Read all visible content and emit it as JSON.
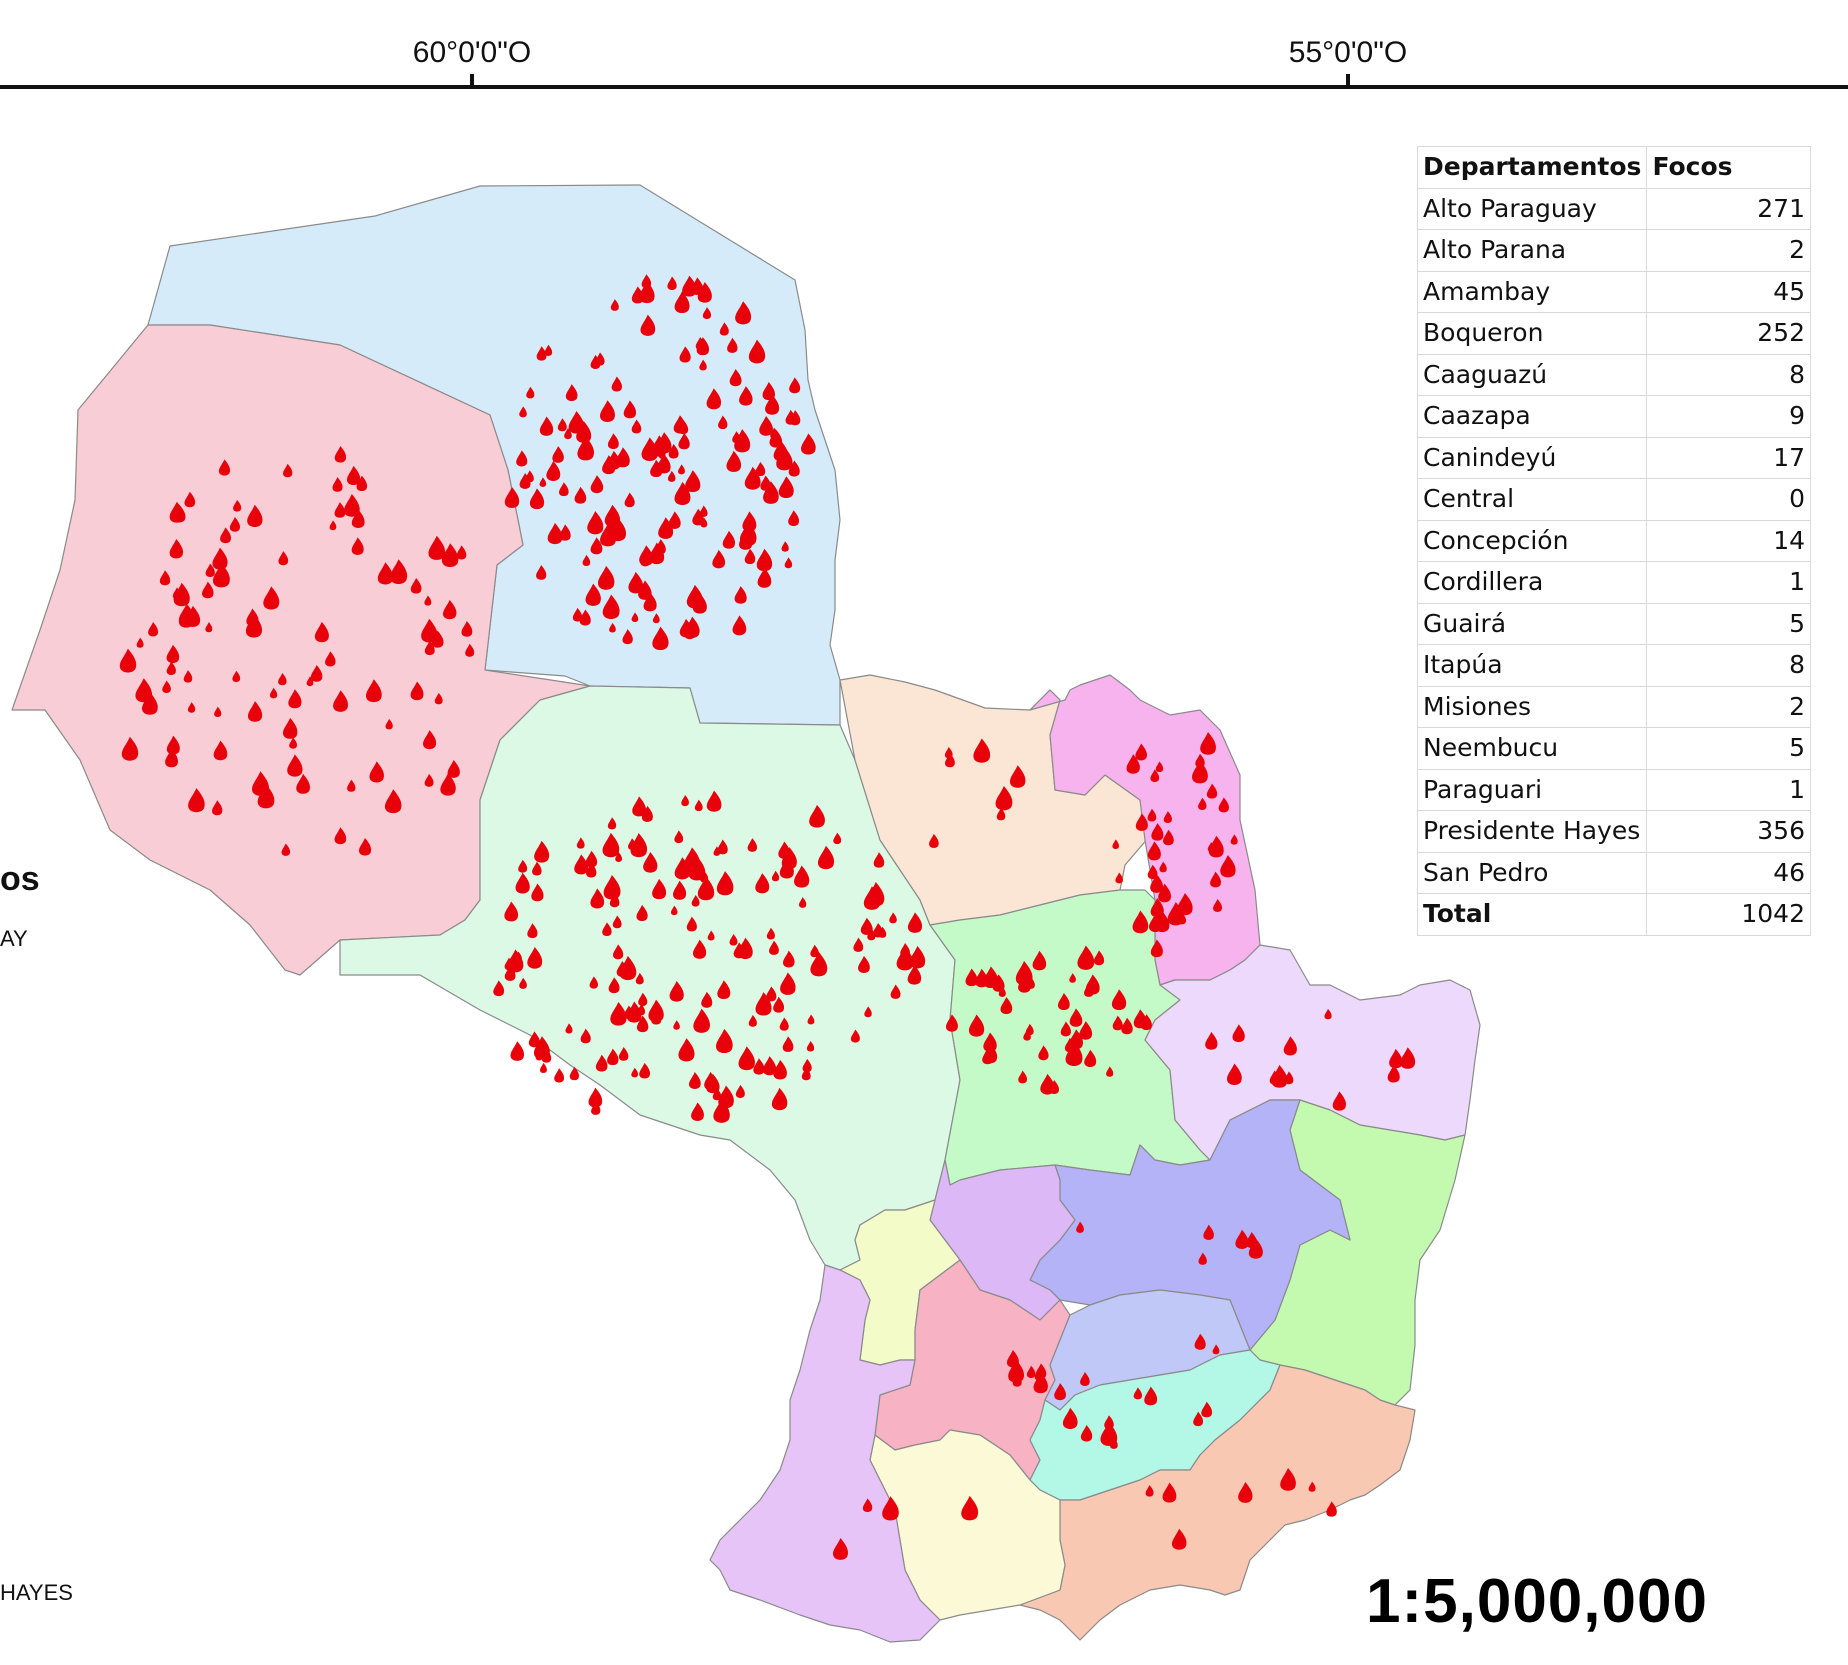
{
  "coordinates": {
    "lon_label_1": "60°0'0\"O",
    "lon_label_2": "55°0'0\"O"
  },
  "legend_fragments": {
    "title_tail": "os",
    "subtitle_tail": "AY",
    "hayes_tail": "HAYES"
  },
  "scale": "1:5,000,000",
  "table": {
    "header_department": "Departamentos",
    "header_count": "Focos",
    "rows": [
      {
        "name": "Alto Paraguay",
        "value": "271"
      },
      {
        "name": "Alto Parana",
        "value": "2"
      },
      {
        "name": "Amambay",
        "value": "45"
      },
      {
        "name": "Boqueron",
        "value": "252"
      },
      {
        "name": "Caaguazú",
        "value": "8"
      },
      {
        "name": "Caazapa",
        "value": "9"
      },
      {
        "name": "Canindeyú",
        "value": "17"
      },
      {
        "name": "Central",
        "value": "0"
      },
      {
        "name": "Concepción",
        "value": "14"
      },
      {
        "name": "Cordillera",
        "value": "1"
      },
      {
        "name": "Guairá",
        "value": "5"
      },
      {
        "name": "Itapúa",
        "value": "8"
      },
      {
        "name": "Misiones",
        "value": "2"
      },
      {
        "name": "Neembucu",
        "value": "5"
      },
      {
        "name": "Paraguari",
        "value": "1"
      },
      {
        "name": "Presidente Hayes",
        "value": "356"
      },
      {
        "name": "San Pedro",
        "value": "46"
      }
    ],
    "total_label": "Total",
    "total_value": "1042"
  },
  "colors": {
    "alto_paraguay": "#d6ebfa",
    "boqueron": "#f9cdd6",
    "presidente_hayes": "#dcf9e6",
    "concepcion": "#fbe6d6",
    "amambay": "#f7b3ee",
    "san_pedro": "#c4f9c8",
    "canindeyu": "#ecd9fb",
    "caaguazu": "#b4b3f7",
    "alto_parana": "#c4f9b0",
    "cordillera": "#dcb8f7",
    "central": "#f3fbc8",
    "paraguari": "#f7b3c4",
    "guaira": "#c0c8f7",
    "caazapa": "#b3f7e6",
    "itapua": "#f9c8b3",
    "misiones": "#fbf9d6",
    "neembucu": "#e6c4f7",
    "fire": "#e8000b"
  }
}
